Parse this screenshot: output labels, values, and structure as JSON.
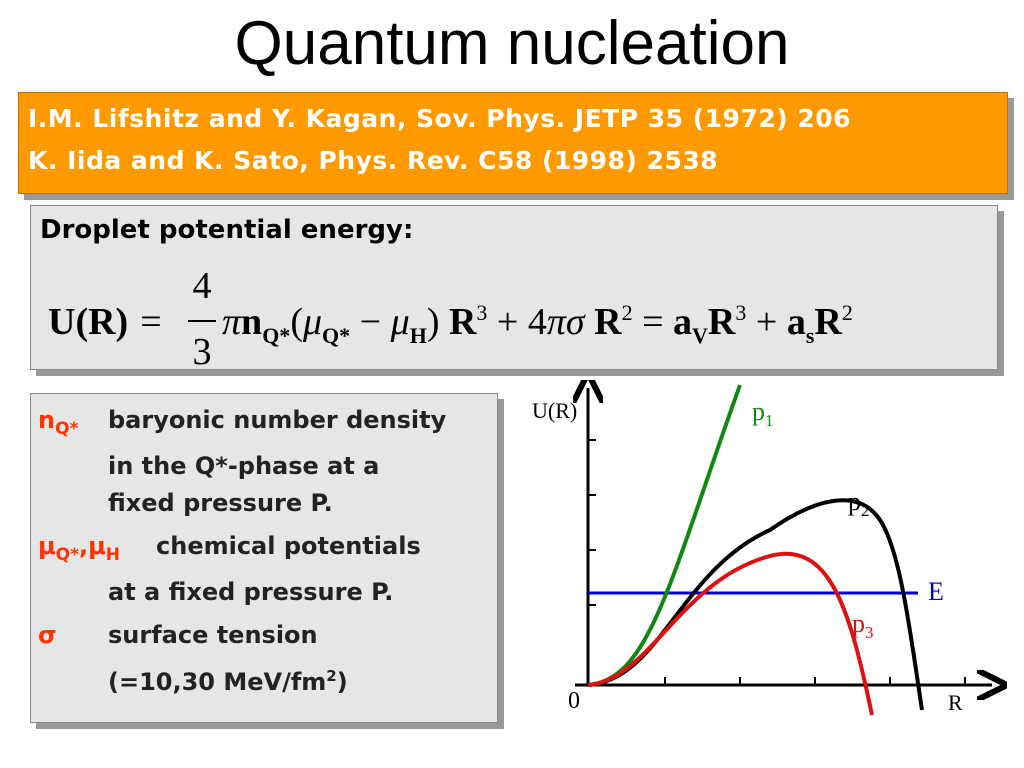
{
  "title": "Quantum nucleation",
  "references": [
    "I.M. Lifshitz and Y. Kagan, Sov. Phys. JETP 35 (1972) 206",
    "K. Iida and K. Sato, Phys. Rev. C58 (1998) 2538"
  ],
  "energy_box": {
    "heading": "Droplet potential energy:",
    "formula": {
      "lhs": "U(R)",
      "eq": "=",
      "num": "4",
      "den": "3",
      "rhs": [
        {
          "t": "π",
          "k": "i"
        },
        {
          "t": "n",
          "k": "b"
        },
        {
          "t": "Q*",
          "k": "sub"
        },
        {
          "t": "(",
          "k": "n"
        },
        {
          "t": "μ",
          "k": "i"
        },
        {
          "t": "Q*",
          "k": "sub"
        },
        {
          "t": " − ",
          "k": "n"
        },
        {
          "t": "μ",
          "k": "i"
        },
        {
          "t": "H",
          "k": "sub"
        },
        {
          "t": ") ",
          "k": "n"
        },
        {
          "t": "R",
          "k": "b"
        },
        {
          "t": "3",
          "k": "sup"
        },
        {
          "t": " + 4",
          "k": "n"
        },
        {
          "t": "πσ",
          "k": "i"
        },
        {
          "t": " R",
          "k": "b"
        },
        {
          "t": "2",
          "k": "sup"
        },
        {
          "t": " = ",
          "k": "n"
        },
        {
          "t": "a",
          "k": "b"
        },
        {
          "t": "V",
          "k": "sub"
        },
        {
          "t": "R",
          "k": "b"
        },
        {
          "t": "3",
          "k": "sup"
        },
        {
          "t": " + ",
          "k": "n"
        },
        {
          "t": "a",
          "k": "b"
        },
        {
          "t": "s",
          "k": "sub"
        },
        {
          "t": "R",
          "k": "b"
        },
        {
          "t": "2",
          "k": "sup"
        }
      ]
    }
  },
  "definitions": [
    {
      "term": [
        {
          "t": "n",
          "k": "n"
        },
        {
          "t": "Q*",
          "k": "sub"
        }
      ],
      "lines": [
        "baryonic number density",
        "in the Q*-phase at a",
        "fixed pressure P."
      ]
    },
    {
      "term": [
        {
          "t": "μ",
          "k": "n"
        },
        {
          "t": "Q*",
          "k": "sub"
        },
        {
          "t": ",μ",
          "k": "n"
        },
        {
          "t": "H",
          "k": "sub"
        }
      ],
      "lines": [
        "chemical potentials",
        "at a fixed pressure P."
      ]
    },
    {
      "term": [
        {
          "t": "σ",
          "k": "n"
        }
      ],
      "lines": [
        "surface tension"
      ],
      "note": {
        "before": "(=10,30 MeV/fm",
        "sup": "2",
        "after": ")"
      }
    }
  ],
  "graph": {
    "y_label": "U(R)",
    "x_label": "R",
    "origin": "0",
    "energy_label": "E",
    "curves": [
      {
        "base": "p",
        "sub": "1"
      },
      {
        "base": "p",
        "sub": "2"
      },
      {
        "base": "p",
        "sub": "3"
      }
    ]
  }
}
